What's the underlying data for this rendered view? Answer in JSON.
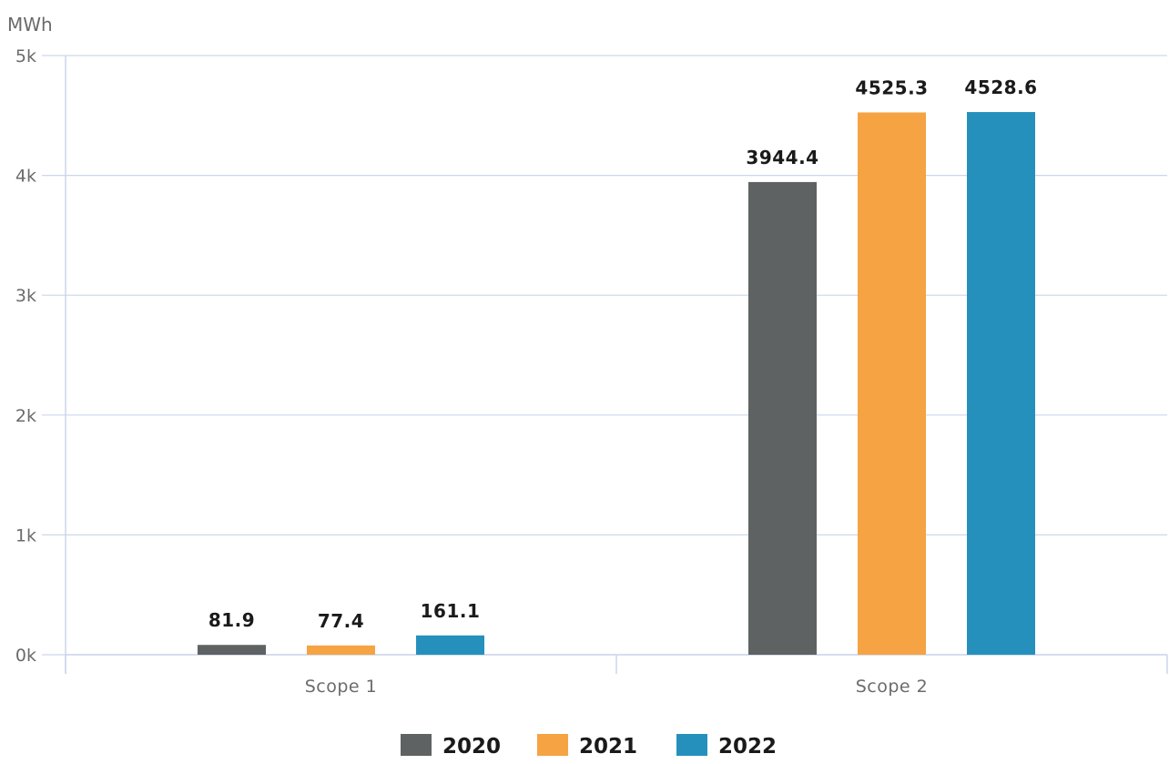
{
  "chart_data": {
    "type": "bar",
    "title": "",
    "ylabel": "MWh",
    "xlabel": "",
    "ylim": [
      0,
      5000
    ],
    "yticks": [
      0,
      1000,
      2000,
      3000,
      4000,
      5000
    ],
    "ytick_labels": [
      "0k",
      "1k",
      "2k",
      "3k",
      "4k",
      "5k"
    ],
    "categories": [
      "Scope 1",
      "Scope 2"
    ],
    "series": [
      {
        "name": "2020",
        "color": "#5f6262",
        "values": [
          81.9,
          3944.4
        ],
        "labels": [
          "81.9",
          "3944.4"
        ]
      },
      {
        "name": "2021",
        "color": "#f5a343",
        "values": [
          77.4,
          4525.3
        ],
        "labels": [
          "77.4",
          "4525.3"
        ]
      },
      {
        "name": "2022",
        "color": "#2690bd",
        "values": [
          161.1,
          4528.6
        ],
        "labels": [
          "161.1",
          "4528.6"
        ]
      }
    ],
    "grid": true,
    "legend": "bottom-center"
  }
}
